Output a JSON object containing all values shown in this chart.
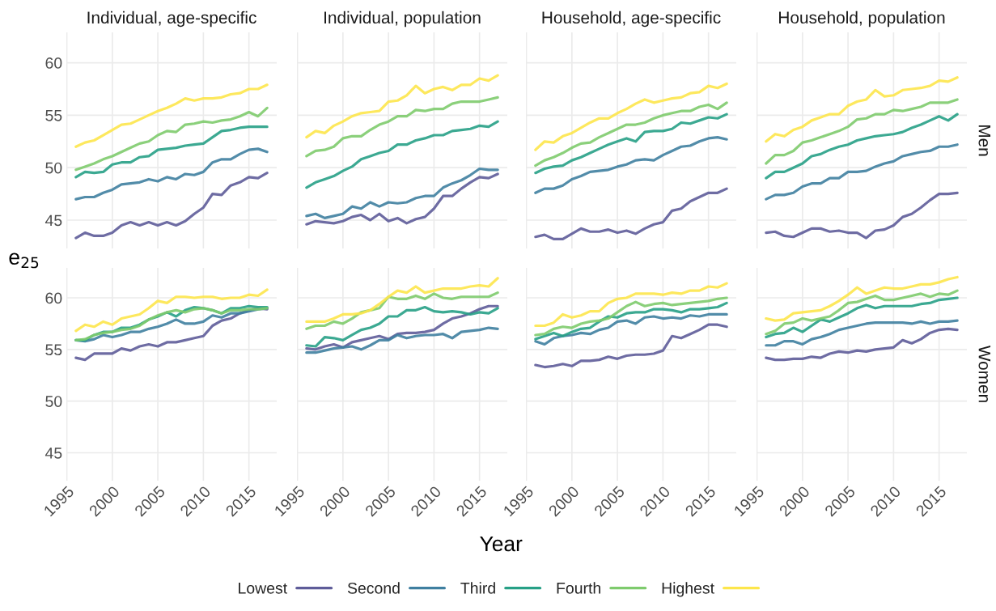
{
  "chart_data": [
    {
      "type": "line",
      "title": "Individual, age-specific",
      "ylabel": "e$_{25}$",
      "legend": "bottom",
      "grid": true,
      "tick_labels": "y",
      "x": [
        1996,
        1997,
        1998,
        1999,
        2000,
        2001,
        2002,
        2003,
        2004,
        2005,
        2006,
        2007,
        2008,
        2009,
        2010,
        2011,
        2012,
        2013,
        2014,
        2015,
        2016,
        2017
      ],
      "xlim": [
        1994.95,
        2018.05
      ],
      "xticks": [
        1995,
        2000,
        2005,
        2010,
        2015
      ],
      "ylim": [
        42.3,
        62.9
      ],
      "yticks": [
        45,
        50,
        55,
        60
      ],
      "series": [
        {
          "name": "Lowest",
          "color": "#5e5c99",
          "values": [
            43.3,
            43.8,
            43.5,
            43.5,
            43.8,
            44.5,
            44.8,
            44.5,
            44.8,
            44.5,
            44.8,
            44.5,
            44.9,
            45.6,
            46.2,
            47.5,
            47.4,
            48.3,
            48.6,
            49.1,
            49.0,
            49.5
          ]
        },
        {
          "name": "Second",
          "color": "#3f7fa0",
          "values": [
            47.0,
            47.2,
            47.2,
            47.6,
            47.9,
            48.4,
            48.5,
            48.6,
            48.9,
            48.7,
            49.1,
            48.9,
            49.4,
            49.3,
            49.6,
            50.5,
            50.8,
            50.8,
            51.3,
            51.7,
            51.8,
            51.5
          ]
        },
        {
          "name": "Third",
          "color": "#27a086",
          "values": [
            49.1,
            49.6,
            49.5,
            49.6,
            50.3,
            50.5,
            50.5,
            51.0,
            51.1,
            51.7,
            51.8,
            51.9,
            52.1,
            52.2,
            52.3,
            52.9,
            53.5,
            53.6,
            53.8,
            53.9,
            53.9,
            53.9
          ]
        },
        {
          "name": "Fourth",
          "color": "#7ecb6d",
          "values": [
            49.8,
            50.1,
            50.4,
            50.8,
            51.1,
            51.5,
            51.9,
            52.3,
            52.5,
            53.1,
            53.5,
            53.4,
            54.1,
            54.2,
            54.4,
            54.3,
            54.5,
            54.6,
            54.9,
            55.3,
            54.9,
            55.7
          ]
        },
        {
          "name": "Highest",
          "color": "#fde64b",
          "values": [
            52.0,
            52.4,
            52.6,
            53.1,
            53.6,
            54.1,
            54.2,
            54.6,
            55.0,
            55.4,
            55.7,
            56.1,
            56.6,
            56.4,
            56.6,
            56.6,
            56.7,
            57.0,
            57.1,
            57.5,
            57.5,
            57.9
          ]
        }
      ]
    },
    {
      "type": "line",
      "title": "Individual, population",
      "grid": true,
      "tick_labels": false,
      "x": [
        1996,
        1997,
        1998,
        1999,
        2000,
        2001,
        2002,
        2003,
        2004,
        2005,
        2006,
        2007,
        2008,
        2009,
        2010,
        2011,
        2012,
        2013,
        2014,
        2015,
        2016,
        2017
      ],
      "xlim": [
        1994.95,
        2018.05
      ],
      "xticks": [
        1995,
        2000,
        2005,
        2010,
        2015
      ],
      "ylim": [
        42.3,
        62.9
      ],
      "yticks": [
        45,
        50,
        55,
        60
      ],
      "series": [
        {
          "color": "#5e5c99",
          "values": [
            44.6,
            44.9,
            44.8,
            44.7,
            44.9,
            45.3,
            45.5,
            45.0,
            45.6,
            44.9,
            45.2,
            44.7,
            45.1,
            45.3,
            46.1,
            47.3,
            47.3,
            48.0,
            48.6,
            49.1,
            49.0,
            49.4
          ]
        },
        {
          "color": "#3f7fa0",
          "values": [
            45.4,
            45.6,
            45.2,
            45.4,
            45.6,
            46.3,
            46.1,
            46.7,
            46.3,
            46.7,
            46.6,
            46.7,
            47.1,
            47.3,
            47.3,
            48.1,
            48.5,
            48.8,
            49.3,
            49.9,
            49.8,
            49.8
          ]
        },
        {
          "color": "#27a086",
          "values": [
            48.1,
            48.6,
            48.9,
            49.2,
            49.7,
            50.1,
            50.8,
            51.1,
            51.4,
            51.6,
            52.2,
            52.2,
            52.6,
            52.8,
            53.1,
            53.1,
            53.5,
            53.6,
            53.7,
            54.0,
            53.9,
            54.4
          ]
        },
        {
          "color": "#7ecb6d",
          "values": [
            51.1,
            51.6,
            51.7,
            52.0,
            52.8,
            53.0,
            53.0,
            53.6,
            54.1,
            54.4,
            54.9,
            54.9,
            55.5,
            55.4,
            55.6,
            55.6,
            56.1,
            56.3,
            56.3,
            56.3,
            56.5,
            56.7
          ]
        },
        {
          "color": "#fde64b",
          "values": [
            52.9,
            53.5,
            53.3,
            54.0,
            54.4,
            54.9,
            55.2,
            55.3,
            55.4,
            56.3,
            56.4,
            56.9,
            57.8,
            57.1,
            57.5,
            57.7,
            57.4,
            57.9,
            57.9,
            58.5,
            58.3,
            58.8
          ]
        }
      ]
    },
    {
      "type": "line",
      "title": "Household, age-specific",
      "grid": true,
      "tick_labels": false,
      "x": [
        1996,
        1997,
        1998,
        1999,
        2000,
        2001,
        2002,
        2003,
        2004,
        2005,
        2006,
        2007,
        2008,
        2009,
        2010,
        2011,
        2012,
        2013,
        2014,
        2015,
        2016,
        2017
      ],
      "xlim": [
        1994.95,
        2018.05
      ],
      "xticks": [
        1995,
        2000,
        2005,
        2010,
        2015
      ],
      "ylim": [
        42.3,
        62.9
      ],
      "yticks": [
        45,
        50,
        55,
        60
      ],
      "series": [
        {
          "color": "#5e5c99",
          "values": [
            43.4,
            43.6,
            43.2,
            43.2,
            43.7,
            44.2,
            43.9,
            43.9,
            44.1,
            43.8,
            44.0,
            43.7,
            44.2,
            44.6,
            44.8,
            45.9,
            46.1,
            46.8,
            47.2,
            47.6,
            47.6,
            48.0
          ]
        },
        {
          "color": "#3f7fa0",
          "values": [
            47.6,
            48.0,
            48.0,
            48.3,
            48.9,
            49.2,
            49.6,
            49.7,
            49.8,
            50.1,
            50.3,
            50.7,
            50.8,
            50.7,
            51.2,
            51.6,
            52.0,
            52.1,
            52.5,
            52.8,
            52.9,
            52.7
          ]
        },
        {
          "color": "#27a086",
          "values": [
            49.5,
            49.9,
            50.1,
            50.2,
            50.7,
            51.0,
            51.4,
            51.8,
            52.2,
            52.5,
            52.8,
            52.5,
            53.4,
            53.5,
            53.5,
            53.7,
            54.3,
            54.2,
            54.5,
            54.8,
            54.7,
            55.1
          ]
        },
        {
          "color": "#7ecb6d",
          "values": [
            50.2,
            50.7,
            51.0,
            51.4,
            51.9,
            52.3,
            52.4,
            52.9,
            53.3,
            53.7,
            54.1,
            54.1,
            54.3,
            54.7,
            55.0,
            55.2,
            55.4,
            55.4,
            55.8,
            56.0,
            55.6,
            56.2
          ]
        },
        {
          "color": "#fde64b",
          "values": [
            51.7,
            52.5,
            52.4,
            53.0,
            53.3,
            53.8,
            54.3,
            54.7,
            54.7,
            55.2,
            55.6,
            56.1,
            56.5,
            56.2,
            56.4,
            56.6,
            56.7,
            57.1,
            57.2,
            57.8,
            57.6,
            58.0
          ]
        }
      ]
    },
    {
      "type": "line",
      "title": "Household, population",
      "annotations": [
        "Men"
      ],
      "grid": true,
      "tick_labels": false,
      "x": [
        1996,
        1997,
        1998,
        1999,
        2000,
        2001,
        2002,
        2003,
        2004,
        2005,
        2006,
        2007,
        2008,
        2009,
        2010,
        2011,
        2012,
        2013,
        2014,
        2015,
        2016,
        2017
      ],
      "xlim": [
        1994.95,
        2018.05
      ],
      "xticks": [
        1995,
        2000,
        2005,
        2010,
        2015
      ],
      "ylim": [
        42.3,
        62.9
      ],
      "yticks": [
        45,
        50,
        55,
        60
      ],
      "series": [
        {
          "color": "#5e5c99",
          "values": [
            43.8,
            43.9,
            43.5,
            43.4,
            43.8,
            44.2,
            44.2,
            43.9,
            44.0,
            43.8,
            43.8,
            43.3,
            44.0,
            44.1,
            44.5,
            45.3,
            45.6,
            46.2,
            46.9,
            47.5,
            47.5,
            47.6
          ]
        },
        {
          "color": "#3f7fa0",
          "values": [
            47.0,
            47.4,
            47.4,
            47.6,
            48.2,
            48.5,
            48.5,
            49.0,
            49.0,
            49.6,
            49.6,
            49.7,
            50.1,
            50.4,
            50.6,
            51.1,
            51.3,
            51.5,
            51.6,
            52.0,
            52.0,
            52.2
          ]
        },
        {
          "color": "#27a086",
          "values": [
            49.0,
            49.6,
            49.6,
            50.0,
            50.4,
            51.1,
            51.3,
            51.7,
            52.0,
            52.2,
            52.6,
            52.8,
            53.0,
            53.1,
            53.2,
            53.4,
            53.8,
            54.1,
            54.5,
            54.9,
            54.5,
            55.1
          ]
        },
        {
          "color": "#7ecb6d",
          "values": [
            50.4,
            51.2,
            51.2,
            51.6,
            52.4,
            52.6,
            52.9,
            53.2,
            53.5,
            53.9,
            54.6,
            54.7,
            55.1,
            55.1,
            55.5,
            55.4,
            55.6,
            55.8,
            56.2,
            56.2,
            56.2,
            56.5
          ]
        },
        {
          "color": "#fde64b",
          "values": [
            52.5,
            53.2,
            53.0,
            53.6,
            53.9,
            54.5,
            54.8,
            55.1,
            55.1,
            55.9,
            56.3,
            56.5,
            57.4,
            56.8,
            56.9,
            57.4,
            57.5,
            57.6,
            57.8,
            58.3,
            58.2,
            58.6
          ]
        }
      ]
    },
    {
      "type": "line",
      "grid": true,
      "x": [
        1996,
        1997,
        1998,
        1999,
        2000,
        2001,
        2002,
        2003,
        2004,
        2005,
        2006,
        2007,
        2008,
        2009,
        2010,
        2011,
        2012,
        2013,
        2014,
        2015,
        2016,
        2017
      ],
      "xlim": [
        1994.95,
        2018.05
      ],
      "xticks": [
        1995,
        2000,
        2005,
        2010,
        2015
      ],
      "ylim": [
        42.3,
        62.9
      ],
      "yticks": [
        45,
        50,
        55,
        60
      ],
      "series": [
        {
          "color": "#5e5c99",
          "values": [
            54.2,
            54.0,
            54.6,
            54.6,
            54.6,
            55.1,
            54.9,
            55.3,
            55.5,
            55.3,
            55.7,
            55.7,
            55.9,
            56.1,
            56.3,
            57.3,
            57.8,
            58.0,
            58.5,
            58.8,
            59.0,
            58.9
          ]
        },
        {
          "color": "#3f7fa0",
          "values": [
            55.9,
            55.8,
            56.0,
            56.4,
            56.2,
            56.4,
            56.7,
            56.7,
            57.0,
            57.2,
            57.5,
            57.9,
            57.5,
            57.5,
            57.7,
            58.3,
            58.1,
            58.5,
            58.5,
            58.7,
            58.9,
            59.0
          ]
        },
        {
          "color": "#27a086",
          "values": [
            55.9,
            55.9,
            56.4,
            56.7,
            56.7,
            57.1,
            57.1,
            57.4,
            57.9,
            58.2,
            58.6,
            58.2,
            58.8,
            59.1,
            59.0,
            58.8,
            58.5,
            59.0,
            59.0,
            59.2,
            59.1,
            59.1
          ]
        },
        {
          "color": "#7ecb6d",
          "values": [
            55.9,
            56.0,
            56.4,
            56.6,
            56.7,
            56.9,
            57.0,
            57.3,
            57.9,
            58.3,
            58.6,
            58.8,
            58.6,
            58.9,
            59.0,
            58.8,
            58.5,
            58.8,
            58.8,
            58.9,
            58.9,
            59.0
          ]
        },
        {
          "color": "#fde64b",
          "values": [
            56.8,
            57.4,
            57.2,
            57.7,
            57.4,
            58.0,
            58.2,
            58.4,
            59.0,
            59.7,
            59.5,
            60.1,
            60.1,
            60.0,
            60.1,
            60.1,
            59.9,
            60.0,
            60.0,
            60.3,
            60.2,
            60.8
          ]
        }
      ]
    },
    {
      "type": "line",
      "xlabel": "Year",
      "grid": true,
      "tick_labels": "x",
      "x": [
        1996,
        1997,
        1998,
        1999,
        2000,
        2001,
        2002,
        2003,
        2004,
        2005,
        2006,
        2007,
        2008,
        2009,
        2010,
        2011,
        2012,
        2013,
        2014,
        2015,
        2016,
        2017
      ],
      "xlim": [
        1994.95,
        2018.05
      ],
      "xticks": [
        1995,
        2000,
        2005,
        2010,
        2015
      ],
      "ylim": [
        42.3,
        62.9
      ],
      "yticks": [
        45,
        50,
        55,
        60
      ],
      "series": [
        {
          "color": "#5e5c99",
          "values": [
            55.1,
            55.0,
            55.3,
            55.5,
            55.2,
            55.7,
            55.9,
            56.1,
            56.3,
            56.0,
            56.5,
            56.6,
            56.6,
            56.7,
            56.9,
            57.5,
            58.0,
            58.2,
            58.5,
            58.9,
            59.2,
            59.2
          ]
        },
        {
          "color": "#3f7fa0",
          "values": [
            54.7,
            54.7,
            54.9,
            55.1,
            55.2,
            55.3,
            55.0,
            55.4,
            55.9,
            55.9,
            56.4,
            56.1,
            56.3,
            56.4,
            56.4,
            56.5,
            56.1,
            56.7,
            56.8,
            56.9,
            57.1,
            57.0
          ]
        },
        {
          "color": "#27a086",
          "values": [
            55.4,
            55.3,
            56.2,
            56.1,
            55.9,
            56.4,
            56.9,
            57.1,
            57.5,
            58.2,
            58.2,
            58.8,
            58.8,
            59.1,
            58.7,
            58.6,
            58.7,
            58.6,
            58.4,
            58.6,
            58.5,
            59.0
          ]
        },
        {
          "color": "#7ecb6d",
          "values": [
            57.0,
            57.3,
            57.3,
            57.7,
            57.5,
            58.0,
            58.6,
            58.8,
            59.0,
            60.1,
            59.9,
            59.9,
            60.2,
            59.9,
            60.4,
            60.0,
            59.9,
            60.1,
            60.1,
            60.1,
            60.1,
            60.5
          ]
        },
        {
          "color": "#fde64b",
          "values": [
            57.7,
            57.7,
            57.7,
            58.0,
            58.4,
            58.4,
            58.5,
            58.8,
            59.4,
            60.1,
            60.7,
            60.5,
            61.1,
            60.5,
            60.7,
            60.9,
            60.9,
            60.9,
            61.1,
            61.2,
            61.1,
            61.9
          ]
        }
      ]
    },
    {
      "type": "line",
      "grid": true,
      "tick_labels": "x",
      "x": [
        1996,
        1997,
        1998,
        1999,
        2000,
        2001,
        2002,
        2003,
        2004,
        2005,
        2006,
        2007,
        2008,
        2009,
        2010,
        2011,
        2012,
        2013,
        2014,
        2015,
        2016,
        2017
      ],
      "xlim": [
        1994.95,
        2018.05
      ],
      "xticks": [
        1995,
        2000,
        2005,
        2010,
        2015
      ],
      "ylim": [
        42.3,
        62.9
      ],
      "yticks": [
        45,
        50,
        55,
        60
      ],
      "series": [
        {
          "color": "#5e5c99",
          "values": [
            53.5,
            53.3,
            53.4,
            53.6,
            53.4,
            53.9,
            53.9,
            54.0,
            54.3,
            54.1,
            54.4,
            54.5,
            54.5,
            54.6,
            54.9,
            56.3,
            56.1,
            56.5,
            56.9,
            57.4,
            57.4,
            57.2
          ]
        },
        {
          "color": "#3f7fa0",
          "values": [
            55.8,
            55.5,
            56.1,
            56.3,
            56.4,
            56.6,
            56.5,
            56.9,
            57.1,
            57.7,
            57.8,
            57.5,
            58.1,
            58.2,
            58.0,
            58.1,
            58.0,
            58.3,
            58.2,
            58.4,
            58.4,
            58.4
          ]
        },
        {
          "color": "#27a086",
          "values": [
            56.0,
            56.3,
            56.6,
            56.3,
            56.7,
            57.0,
            57.1,
            57.7,
            58.2,
            58.1,
            58.5,
            58.6,
            58.6,
            58.9,
            58.9,
            58.8,
            58.6,
            58.9,
            58.9,
            59.0,
            59.1,
            59.5
          ]
        },
        {
          "color": "#7ecb6d",
          "values": [
            56.4,
            56.5,
            57.0,
            57.2,
            57.1,
            57.5,
            57.7,
            57.8,
            58.0,
            58.6,
            59.2,
            59.6,
            59.2,
            59.4,
            59.5,
            59.3,
            59.4,
            59.5,
            59.6,
            59.7,
            59.9,
            60.0
          ]
        },
        {
          "color": "#fde64b",
          "values": [
            57.3,
            57.3,
            57.6,
            58.4,
            58.1,
            58.3,
            58.7,
            58.7,
            59.5,
            59.9,
            60.0,
            60.4,
            60.4,
            60.4,
            60.3,
            60.5,
            60.4,
            60.7,
            60.7,
            61.1,
            61.0,
            61.4
          ]
        }
      ]
    },
    {
      "type": "line",
      "annotations": [
        "Women"
      ],
      "grid": true,
      "tick_labels": "x",
      "x": [
        1996,
        1997,
        1998,
        1999,
        2000,
        2001,
        2002,
        2003,
        2004,
        2005,
        2006,
        2007,
        2008,
        2009,
        2010,
        2011,
        2012,
        2013,
        2014,
        2015,
        2016,
        2017
      ],
      "xlim": [
        1994.95,
        2018.05
      ],
      "xticks": [
        1995,
        2000,
        2005,
        2010,
        2015
      ],
      "ylim": [
        42.3,
        62.9
      ],
      "yticks": [
        45,
        50,
        55,
        60
      ],
      "series": [
        {
          "color": "#5e5c99",
          "values": [
            54.2,
            54.0,
            54.0,
            54.1,
            54.1,
            54.3,
            54.2,
            54.6,
            54.8,
            54.7,
            54.9,
            54.8,
            55.0,
            55.1,
            55.2,
            55.9,
            55.6,
            56.0,
            56.6,
            56.9,
            57.0,
            56.9
          ]
        },
        {
          "color": "#3f7fa0",
          "values": [
            55.4,
            55.4,
            55.8,
            55.8,
            55.5,
            56.0,
            56.2,
            56.5,
            56.9,
            57.1,
            57.3,
            57.5,
            57.6,
            57.6,
            57.6,
            57.6,
            57.5,
            57.7,
            57.5,
            57.7,
            57.7,
            57.8
          ]
        },
        {
          "color": "#27a086",
          "values": [
            56.2,
            56.5,
            56.6,
            57.1,
            56.7,
            57.3,
            57.9,
            57.7,
            58.1,
            58.5,
            59.0,
            59.3,
            59.0,
            59.2,
            59.2,
            59.2,
            59.2,
            59.4,
            59.5,
            59.8,
            59.9,
            60.0
          ]
        },
        {
          "color": "#7ecb6d",
          "values": [
            56.5,
            56.8,
            57.5,
            57.6,
            58.0,
            57.8,
            58.0,
            58.2,
            58.8,
            59.5,
            59.6,
            59.9,
            60.2,
            59.8,
            59.8,
            60.0,
            60.2,
            60.4,
            60.1,
            60.4,
            60.3,
            60.7
          ]
        },
        {
          "color": "#fde64b",
          "values": [
            58.0,
            57.8,
            57.9,
            58.5,
            58.6,
            58.7,
            58.8,
            59.2,
            59.7,
            60.3,
            61.0,
            60.4,
            60.7,
            61.0,
            60.9,
            60.9,
            61.1,
            61.3,
            61.3,
            61.5,
            61.8,
            62.0
          ]
        }
      ]
    }
  ]
}
